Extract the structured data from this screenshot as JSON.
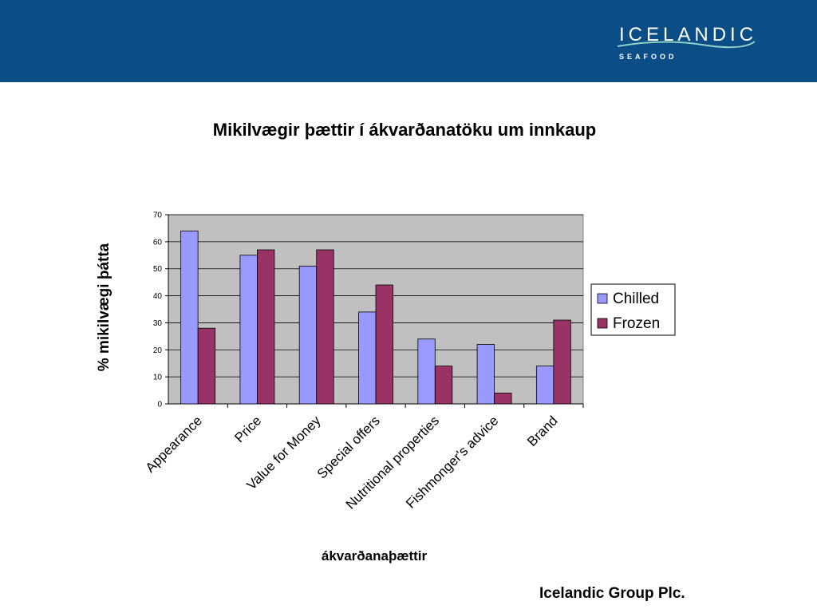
{
  "header": {
    "logo_main": "ICELANDIC",
    "logo_sub": "SEAFOOD"
  },
  "slide_title": "Mikilvægir þættir í ákvarðanatöku um innkaup",
  "footer": "Icelandic Group Plc.",
  "colors": {
    "header_band": "#0b4d86",
    "plot_background": "#c0c0c0",
    "chilled": "#9999ff",
    "frozen": "#993366"
  },
  "chart_data": {
    "type": "bar",
    "title": "",
    "xlabel": "ákvarðanaþættir",
    "ylabel": "% mikilvægi þátta",
    "categories": [
      "Appearance",
      "Price",
      "Value for Money",
      "Special offers",
      "Nutritional properties",
      "Fishmonger's advice",
      "Brand"
    ],
    "series": [
      {
        "name": "Chilled",
        "values": [
          64,
          55,
          51,
          34,
          24,
          22,
          14
        ]
      },
      {
        "name": "Frozen",
        "values": [
          28,
          57,
          57,
          44,
          14,
          4,
          31
        ]
      }
    ],
    "ylim": [
      0,
      70
    ],
    "yticks": [
      0,
      10,
      20,
      30,
      40,
      50,
      60,
      70
    ],
    "grid": true,
    "legend": "right"
  }
}
